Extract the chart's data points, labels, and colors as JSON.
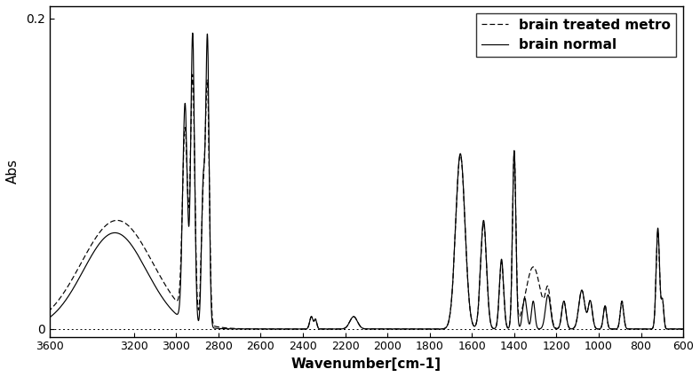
{
  "title": "",
  "xlabel": "Wavenumber[cm-1]",
  "ylabel": "Abs",
  "xlim": [
    3600,
    600
  ],
  "ylim": [
    -0.005,
    0.208
  ],
  "yticks": [
    0,
    0.2
  ],
  "xticks": [
    3600,
    3200,
    3000,
    2800,
    2600,
    2400,
    2200,
    2000,
    1800,
    1600,
    1400,
    1200,
    1000,
    800,
    600
  ],
  "legend_labels": [
    "brain normal",
    "brain treated metro"
  ],
  "line_color": "#000000",
  "background_color": "#ffffff"
}
